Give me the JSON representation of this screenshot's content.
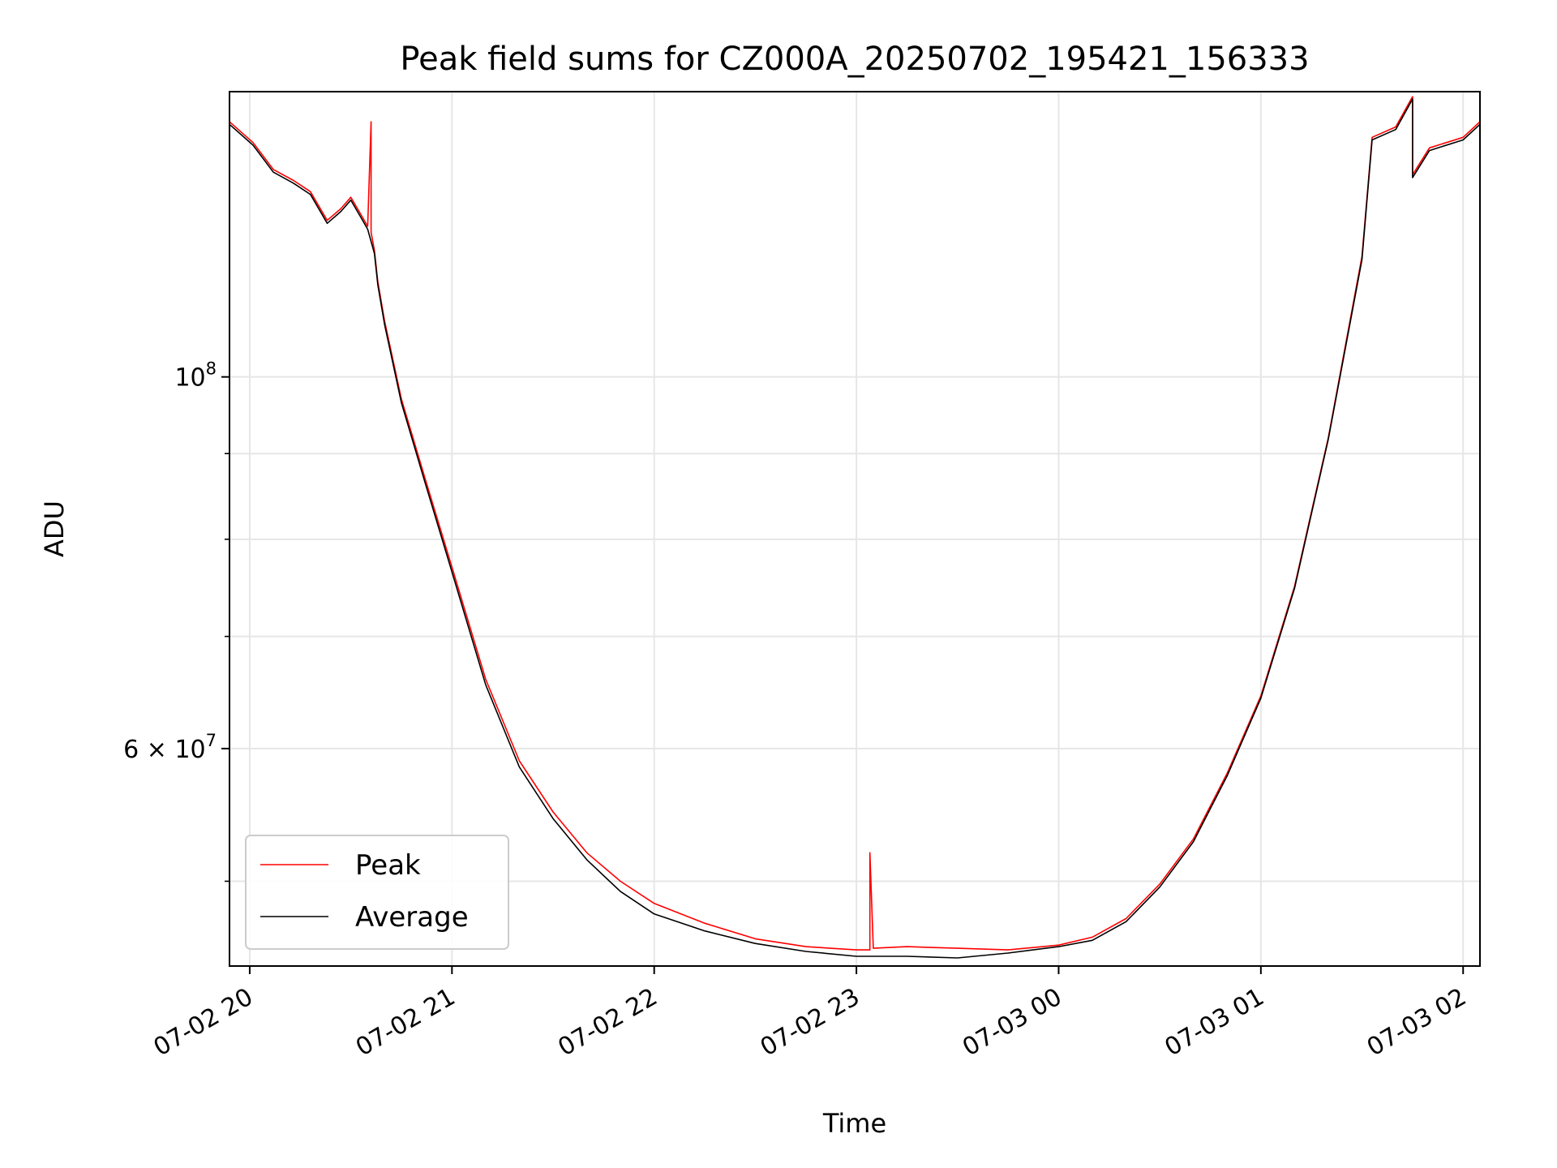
{
  "chart_data": {
    "type": "line",
    "title": "Peak field sums for CZ000A_20250702_195421_156333",
    "xlabel": "Time",
    "ylabel": "ADU",
    "y_scale": "log",
    "ylim": [
      44500000,
      148000000
    ],
    "xlim": [
      "2025-07-02 19:54",
      "2025-07-03 02:05"
    ],
    "grid": true,
    "legend_position": "lower-left",
    "x_ticks": [
      "07-02 20",
      "07-02 21",
      "07-02 22",
      "07-02 23",
      "07-03 00",
      "07-03 01",
      "07-03 02"
    ],
    "x_tick_times": [
      "2025-07-02 20:00",
      "2025-07-02 21:00",
      "2025-07-02 22:00",
      "2025-07-02 23:00",
      "2025-07-03 00:00",
      "2025-07-03 01:00",
      "2025-07-03 02:00"
    ],
    "y_major_ticks": [
      {
        "value": 100000000,
        "base": "10",
        "exp": "8"
      },
      {
        "value": 60000000,
        "coef": "6",
        "base": "10",
        "exp": "7"
      }
    ],
    "y_minor_ticks": [
      50000000,
      70000000,
      80000000,
      90000000
    ],
    "series": [
      {
        "name": "Peak",
        "color": "#ff0000",
        "x": [
          "2025-07-02 19:54",
          "2025-07-02 20:01",
          "2025-07-02 20:07",
          "2025-07-02 20:13",
          "2025-07-02 20:18",
          "2025-07-02 20:23",
          "2025-07-02 20:27",
          "2025-07-02 20:30",
          "2025-07-02 20:33",
          "2025-07-02 20:35",
          "2025-07-02 20:36",
          "2025-07-02 20:36",
          "2025-07-02 20:37",
          "2025-07-02 20:38",
          "2025-07-02 20:40",
          "2025-07-02 20:45",
          "2025-07-02 20:52",
          "2025-07-02 21:00",
          "2025-07-02 21:10",
          "2025-07-02 21:20",
          "2025-07-02 21:30",
          "2025-07-02 21:40",
          "2025-07-02 21:50",
          "2025-07-02 22:00",
          "2025-07-02 22:15",
          "2025-07-02 22:30",
          "2025-07-02 22:45",
          "2025-07-02 23:00",
          "2025-07-02 23:04",
          "2025-07-02 23:04",
          "2025-07-02 23:05",
          "2025-07-02 23:15",
          "2025-07-02 23:30",
          "2025-07-02 23:45",
          "2025-07-03 00:00",
          "2025-07-03 00:10",
          "2025-07-03 00:20",
          "2025-07-03 00:30",
          "2025-07-03 00:40",
          "2025-07-03 00:50",
          "2025-07-03 01:00",
          "2025-07-03 01:10",
          "2025-07-03 01:20",
          "2025-07-03 01:30",
          "2025-07-03 01:33",
          "2025-07-03 01:40",
          "2025-07-03 01:45",
          "2025-07-03 01:45",
          "2025-07-03 01:50",
          "2025-07-03 02:00",
          "2025-07-03 02:05"
        ],
        "y": [
          142000000,
          138000000,
          133000000,
          131000000,
          129000000,
          124000000,
          126000000,
          128000000,
          125000000,
          123000000,
          142000000,
          122000000,
          119000000,
          114000000,
          108000000,
          97000000,
          87000000,
          77000000,
          66000000,
          59000000,
          55000000,
          52000000,
          50000000,
          48500000,
          47200000,
          46200000,
          45700000,
          45500000,
          45500000,
          52000000,
          45600000,
          45700000,
          45600000,
          45500000,
          45800000,
          46300000,
          47500000,
          49800000,
          53000000,
          58000000,
          64500000,
          75000000,
          92000000,
          118000000,
          139000000,
          141000000,
          147000000,
          132000000,
          137000000,
          139000000,
          142000000
        ]
      },
      {
        "name": "Average",
        "color": "#000000",
        "x": [
          "2025-07-02 19:54",
          "2025-07-02 20:01",
          "2025-07-02 20:07",
          "2025-07-02 20:13",
          "2025-07-02 20:18",
          "2025-07-02 20:23",
          "2025-07-02 20:27",
          "2025-07-02 20:30",
          "2025-07-02 20:33",
          "2025-07-02 20:35",
          "2025-07-02 20:37",
          "2025-07-02 20:38",
          "2025-07-02 20:40",
          "2025-07-02 20:45",
          "2025-07-02 20:52",
          "2025-07-02 21:00",
          "2025-07-02 21:10",
          "2025-07-02 21:20",
          "2025-07-02 21:30",
          "2025-07-02 21:40",
          "2025-07-02 21:50",
          "2025-07-02 22:00",
          "2025-07-02 22:15",
          "2025-07-02 22:30",
          "2025-07-02 22:45",
          "2025-07-02 23:00",
          "2025-07-02 23:15",
          "2025-07-02 23:30",
          "2025-07-02 23:45",
          "2025-07-03 00:00",
          "2025-07-03 00:10",
          "2025-07-03 00:20",
          "2025-07-03 00:30",
          "2025-07-03 00:40",
          "2025-07-03 00:50",
          "2025-07-03 01:00",
          "2025-07-03 01:10",
          "2025-07-03 01:20",
          "2025-07-03 01:30",
          "2025-07-03 01:33",
          "2025-07-03 01:40",
          "2025-07-03 01:45",
          "2025-07-03 01:45",
          "2025-07-03 01:50",
          "2025-07-03 02:00",
          "2025-07-03 02:05"
        ],
        "y": [
          141500000,
          137500000,
          132500000,
          130500000,
          128500000,
          123500000,
          125500000,
          127500000,
          124500000,
          122500000,
          118500000,
          113500000,
          107500000,
          96500000,
          86500000,
          76500000,
          65500000,
          58500000,
          54500000,
          51500000,
          49300000,
          47800000,
          46700000,
          45900000,
          45400000,
          45100000,
          45100000,
          45000000,
          45300000,
          45700000,
          46100000,
          47300000,
          49600000,
          52800000,
          57800000,
          64300000,
          74800000,
          91800000,
          117500000,
          138500000,
          140500000,
          146500000,
          131500000,
          136500000,
          138500000,
          141500000
        ]
      }
    ]
  }
}
